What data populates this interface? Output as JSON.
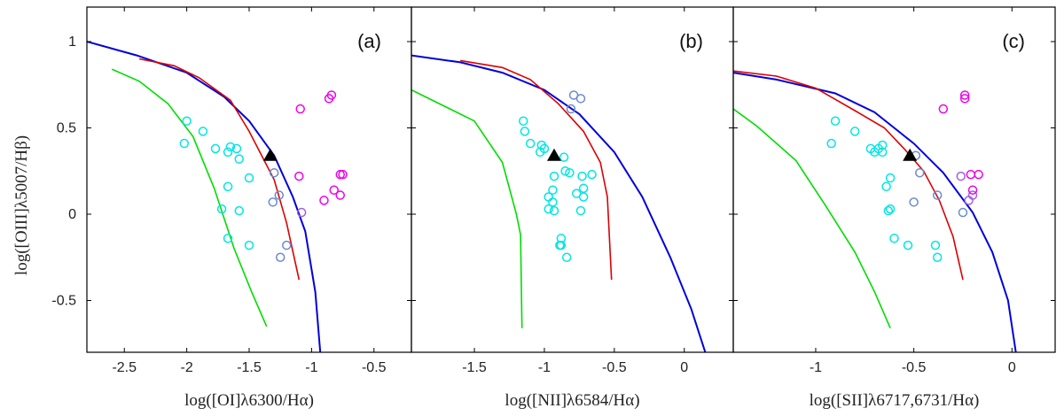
{
  "chart_data": [
    {
      "type": "scatter",
      "panel_label": "(a)",
      "xlabel": "log([OI]λ6300/Hα)",
      "ylabel": "log([OIII]λ5007/Hβ)",
      "xlim": [
        -2.8,
        -0.2
      ],
      "ylim": [
        -0.8,
        1.2
      ],
      "xticks": [
        -2.5,
        -2,
        -1.5,
        -1,
        -0.5
      ],
      "xtick_labels": [
        "-2.5",
        "-2",
        "-1.5",
        "-1",
        "-0.5"
      ],
      "yticks": [
        1,
        0.5,
        0,
        -0.5
      ],
      "ytick_labels": [
        "1",
        "0.5",
        "0",
        "-0.5"
      ],
      "colors": {
        "blue_line": "#0000dd",
        "red_line": "#dd0000",
        "green_line": "#00dd00",
        "cyan": "#00e5e5",
        "slate": "#6a8ad0",
        "purple": "#a060e0",
        "magenta": "#ee00ee",
        "triangle": "#000000"
      },
      "lines": [
        {
          "color": "blue",
          "points": [
            [
              -2.8,
              1.0
            ],
            [
              -2.4,
              0.92
            ],
            [
              -2.0,
              0.82
            ],
            [
              -1.7,
              0.68
            ],
            [
              -1.5,
              0.54
            ],
            [
              -1.3,
              0.34
            ],
            [
              -1.15,
              0.1
            ],
            [
              -1.05,
              -0.1
            ],
            [
              -0.97,
              -0.45
            ],
            [
              -0.93,
              -0.8
            ]
          ]
        },
        {
          "color": "red",
          "points": [
            [
              -2.38,
              0.9
            ],
            [
              -2.1,
              0.86
            ],
            [
              -1.9,
              0.79
            ],
            [
              -1.65,
              0.66
            ],
            [
              -1.5,
              0.48
            ],
            [
              -1.4,
              0.34
            ],
            [
              -1.3,
              0.2
            ],
            [
              -1.2,
              -0.05
            ],
            [
              -1.1,
              -0.38
            ]
          ]
        },
        {
          "color": "green",
          "points": [
            [
              -2.6,
              0.84
            ],
            [
              -2.38,
              0.77
            ],
            [
              -2.15,
              0.64
            ],
            [
              -1.95,
              0.45
            ],
            [
              -1.78,
              0.15
            ],
            [
              -1.62,
              -0.2
            ],
            [
              -1.48,
              -0.45
            ],
            [
              -1.36,
              -0.65
            ]
          ]
        }
      ],
      "points": [
        {
          "x": -2.0,
          "y": 0.54,
          "c": "cyan"
        },
        {
          "x": -2.02,
          "y": 0.41,
          "c": "cyan"
        },
        {
          "x": -1.87,
          "y": 0.48,
          "c": "cyan"
        },
        {
          "x": -1.77,
          "y": 0.38,
          "c": "cyan"
        },
        {
          "x": -1.65,
          "y": 0.39,
          "c": "cyan"
        },
        {
          "x": -1.6,
          "y": 0.38,
          "c": "cyan"
        },
        {
          "x": -1.67,
          "y": 0.36,
          "c": "cyan"
        },
        {
          "x": -1.58,
          "y": 0.32,
          "c": "cyan"
        },
        {
          "x": -1.5,
          "y": 0.21,
          "c": "cyan"
        },
        {
          "x": -1.67,
          "y": 0.16,
          "c": "cyan"
        },
        {
          "x": -1.72,
          "y": 0.03,
          "c": "cyan"
        },
        {
          "x": -1.58,
          "y": 0.02,
          "c": "cyan"
        },
        {
          "x": -1.67,
          "y": -0.14,
          "c": "cyan"
        },
        {
          "x": -1.5,
          "y": -0.18,
          "c": "cyan"
        },
        {
          "x": -1.2,
          "y": -0.18,
          "c": "slate"
        },
        {
          "x": -1.25,
          "y": -0.25,
          "c": "slate"
        },
        {
          "x": -1.3,
          "y": 0.24,
          "c": "slate"
        },
        {
          "x": -1.26,
          "y": 0.11,
          "c": "slate"
        },
        {
          "x": -1.31,
          "y": 0.07,
          "c": "slate"
        },
        {
          "x": -1.08,
          "y": 0.01,
          "c": "purple"
        },
        {
          "x": -1.1,
          "y": 0.22,
          "c": "magenta"
        },
        {
          "x": -1.09,
          "y": 0.61,
          "c": "magenta"
        },
        {
          "x": -0.84,
          "y": 0.69,
          "c": "magenta"
        },
        {
          "x": -0.86,
          "y": 0.67,
          "c": "magenta"
        },
        {
          "x": -0.77,
          "y": 0.23,
          "c": "magenta"
        },
        {
          "x": -0.75,
          "y": 0.23,
          "c": "magenta"
        },
        {
          "x": -0.82,
          "y": 0.14,
          "c": "magenta"
        },
        {
          "x": -0.77,
          "y": 0.11,
          "c": "magenta"
        },
        {
          "x": -0.9,
          "y": 0.08,
          "c": "magenta"
        }
      ],
      "triangle": {
        "x": -1.33,
        "y": 0.34
      }
    },
    {
      "type": "scatter",
      "panel_label": "(b)",
      "xlabel": "log([NII]λ6584/Hα)",
      "xlim": [
        -1.95,
        0.35
      ],
      "ylim": [
        -0.8,
        1.2
      ],
      "xticks": [
        -1.5,
        -1,
        -0.5,
        0
      ],
      "xtick_labels": [
        "-1.5",
        "-1",
        "-0.5",
        "0"
      ],
      "lines": [
        {
          "color": "blue",
          "points": [
            [
              -1.95,
              0.92
            ],
            [
              -1.6,
              0.88
            ],
            [
              -1.3,
              0.82
            ],
            [
              -1.0,
              0.72
            ],
            [
              -0.75,
              0.58
            ],
            [
              -0.5,
              0.36
            ],
            [
              -0.3,
              0.1
            ],
            [
              -0.1,
              -0.25
            ],
            [
              0.05,
              -0.55
            ],
            [
              0.15,
              -0.8
            ]
          ]
        },
        {
          "color": "red",
          "points": [
            [
              -1.6,
              0.89
            ],
            [
              -1.3,
              0.85
            ],
            [
              -1.1,
              0.78
            ],
            [
              -0.9,
              0.64
            ],
            [
              -0.72,
              0.48
            ],
            [
              -0.6,
              0.3
            ],
            [
              -0.55,
              0.1
            ],
            [
              -0.52,
              -0.38
            ]
          ]
        },
        {
          "color": "green",
          "points": [
            [
              -1.95,
              0.72
            ],
            [
              -1.7,
              0.62
            ],
            [
              -1.5,
              0.54
            ],
            [
              -1.3,
              0.3
            ],
            [
              -1.2,
              0.0
            ],
            [
              -1.17,
              -0.12
            ],
            [
              -1.16,
              -0.66
            ]
          ]
        }
      ],
      "points": [
        {
          "x": -1.15,
          "y": 0.54,
          "c": "cyan"
        },
        {
          "x": -1.14,
          "y": 0.48,
          "c": "cyan"
        },
        {
          "x": -1.1,
          "y": 0.41,
          "c": "cyan"
        },
        {
          "x": -1.02,
          "y": 0.4,
          "c": "cyan"
        },
        {
          "x": -1.0,
          "y": 0.38,
          "c": "cyan"
        },
        {
          "x": -1.03,
          "y": 0.36,
          "c": "cyan"
        },
        {
          "x": -0.86,
          "y": 0.33,
          "c": "cyan"
        },
        {
          "x": -0.85,
          "y": 0.25,
          "c": "cyan"
        },
        {
          "x": -0.82,
          "y": 0.24,
          "c": "cyan"
        },
        {
          "x": -0.93,
          "y": 0.22,
          "c": "cyan"
        },
        {
          "x": -0.73,
          "y": 0.22,
          "c": "cyan"
        },
        {
          "x": -0.66,
          "y": 0.23,
          "c": "cyan"
        },
        {
          "x": -0.94,
          "y": 0.14,
          "c": "cyan"
        },
        {
          "x": -0.72,
          "y": 0.15,
          "c": "cyan"
        },
        {
          "x": -0.77,
          "y": 0.12,
          "c": "cyan"
        },
        {
          "x": -0.72,
          "y": 0.1,
          "c": "cyan"
        },
        {
          "x": -0.97,
          "y": 0.1,
          "c": "cyan"
        },
        {
          "x": -0.94,
          "y": 0.07,
          "c": "cyan"
        },
        {
          "x": -0.97,
          "y": 0.03,
          "c": "cyan"
        },
        {
          "x": -0.93,
          "y": 0.02,
          "c": "cyan"
        },
        {
          "x": -0.74,
          "y": 0.02,
          "c": "cyan"
        },
        {
          "x": -0.88,
          "y": -0.14,
          "c": "cyan"
        },
        {
          "x": -0.89,
          "y": -0.18,
          "c": "cyan"
        },
        {
          "x": -0.88,
          "y": -0.18,
          "c": "cyan"
        },
        {
          "x": -0.84,
          "y": -0.25,
          "c": "cyan"
        },
        {
          "x": -0.79,
          "y": 0.69,
          "c": "slate"
        },
        {
          "x": -0.74,
          "y": 0.67,
          "c": "slate"
        },
        {
          "x": -0.81,
          "y": 0.61,
          "c": "slate"
        }
      ],
      "triangle": {
        "x": -0.93,
        "y": 0.34
      }
    },
    {
      "type": "scatter",
      "panel_label": "(c)",
      "xlabel": "log([SII]λ6717,6731/Hα)",
      "xlim": [
        -1.42,
        0.22
      ],
      "ylim": [
        -0.8,
        1.2
      ],
      "xticks": [
        -1,
        -0.5,
        0
      ],
      "xtick_labels": [
        "-1",
        "-0.5",
        "0"
      ],
      "lines": [
        {
          "color": "blue",
          "points": [
            [
              -1.42,
              0.82
            ],
            [
              -1.2,
              0.78
            ],
            [
              -0.9,
              0.7
            ],
            [
              -0.7,
              0.59
            ],
            [
              -0.5,
              0.41
            ],
            [
              -0.35,
              0.24
            ],
            [
              -0.2,
              0.01
            ],
            [
              -0.1,
              -0.22
            ],
            [
              -0.02,
              -0.5
            ],
            [
              0.02,
              -0.8
            ]
          ]
        },
        {
          "color": "red",
          "points": [
            [
              -1.42,
              0.83
            ],
            [
              -1.2,
              0.8
            ],
            [
              -1.0,
              0.73
            ],
            [
              -0.8,
              0.6
            ],
            [
              -0.65,
              0.5
            ],
            [
              -0.55,
              0.38
            ],
            [
              -0.45,
              0.25
            ],
            [
              -0.37,
              0.08
            ],
            [
              -0.3,
              -0.13
            ],
            [
              -0.25,
              -0.38
            ]
          ]
        },
        {
          "color": "green",
          "points": [
            [
              -1.42,
              0.61
            ],
            [
              -1.3,
              0.51
            ],
            [
              -1.1,
              0.31
            ],
            [
              -0.95,
              0.05
            ],
            [
              -0.8,
              -0.22
            ],
            [
              -0.7,
              -0.45
            ],
            [
              -0.62,
              -0.66
            ]
          ]
        }
      ],
      "points": [
        {
          "x": -0.9,
          "y": 0.54,
          "c": "cyan"
        },
        {
          "x": -0.92,
          "y": 0.41,
          "c": "cyan"
        },
        {
          "x": -0.8,
          "y": 0.48,
          "c": "cyan"
        },
        {
          "x": -0.72,
          "y": 0.38,
          "c": "cyan"
        },
        {
          "x": -0.68,
          "y": 0.38,
          "c": "cyan"
        },
        {
          "x": -0.66,
          "y": 0.4,
          "c": "cyan"
        },
        {
          "x": -0.7,
          "y": 0.36,
          "c": "cyan"
        },
        {
          "x": -0.66,
          "y": 0.36,
          "c": "cyan"
        },
        {
          "x": -0.62,
          "y": 0.21,
          "c": "cyan"
        },
        {
          "x": -0.64,
          "y": 0.16,
          "c": "cyan"
        },
        {
          "x": -0.62,
          "y": 0.03,
          "c": "cyan"
        },
        {
          "x": -0.63,
          "y": 0.02,
          "c": "cyan"
        },
        {
          "x": -0.6,
          "y": -0.14,
          "c": "cyan"
        },
        {
          "x": -0.53,
          "y": -0.18,
          "c": "cyan"
        },
        {
          "x": -0.39,
          "y": -0.18,
          "c": "cyan"
        },
        {
          "x": -0.38,
          "y": -0.25,
          "c": "cyan"
        },
        {
          "x": -0.47,
          "y": 0.24,
          "c": "slate"
        },
        {
          "x": -0.38,
          "y": 0.11,
          "c": "slate"
        },
        {
          "x": -0.5,
          "y": 0.07,
          "c": "slate"
        },
        {
          "x": -0.49,
          "y": 0.34,
          "c": "slate"
        },
        {
          "x": -0.25,
          "y": 0.01,
          "c": "slate"
        },
        {
          "x": -0.26,
          "y": 0.22,
          "c": "purple"
        },
        {
          "x": -0.22,
          "y": 0.08,
          "c": "purple"
        },
        {
          "x": -0.2,
          "y": 0.11,
          "c": "purple"
        },
        {
          "x": -0.21,
          "y": 0.23,
          "c": "magenta"
        },
        {
          "x": -0.17,
          "y": 0.23,
          "c": "magenta"
        },
        {
          "x": -0.2,
          "y": 0.14,
          "c": "magenta"
        },
        {
          "x": -0.35,
          "y": 0.61,
          "c": "magenta"
        },
        {
          "x": -0.24,
          "y": 0.69,
          "c": "magenta"
        },
        {
          "x": -0.24,
          "y": 0.67,
          "c": "magenta"
        }
      ],
      "triangle": {
        "x": -0.52,
        "y": 0.34
      }
    }
  ]
}
